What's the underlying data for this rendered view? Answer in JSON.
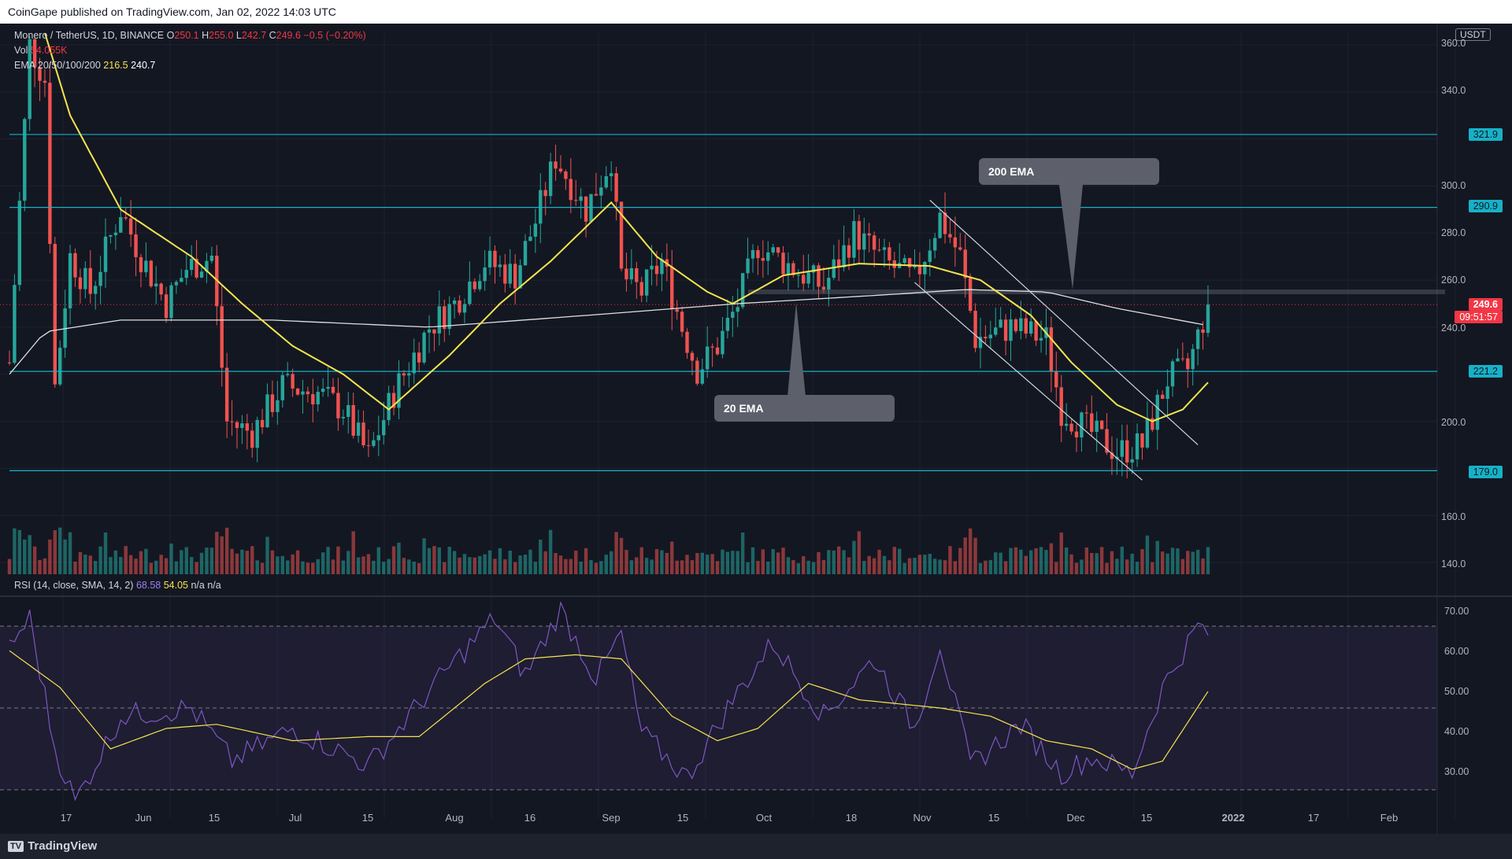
{
  "header": {
    "publisher": "CoinGape published on TradingView.com, Jan 02, 2022 14:03 UTC"
  },
  "legend": {
    "pair": "Monero / TetherUS, 1D, BINANCE",
    "o_label": "O",
    "o_val": "250.1",
    "h_label": "H",
    "h_val": "255.0",
    "l_label": "L",
    "l_val": "242.7",
    "c_label": "C",
    "c_val": "249.6",
    "chg": "−0.5 (−0.20%)",
    "vol_label": "Vol",
    "vol_val": "54.055K",
    "ema_label": "EMA 20/50/100/200",
    "ema20": "216.5",
    "ema200": "240.7",
    "rsi_label": "RSI (14, close, SMA, 14, 2)",
    "rsi_val": "68.58",
    "rsi_sma": "54.05",
    "rsi_na": "n/a n/a"
  },
  "currency_badge": "USDT",
  "callouts": {
    "ema200": "200 EMA",
    "ema20": "20 EMA"
  },
  "price_labels": {
    "r1": "321.9",
    "r2": "290.9",
    "cur": "249.6",
    "countdown": "09:51:57",
    "s1": "221.2",
    "s2": "179.0"
  },
  "price_axis": [
    "360.0",
    "340.0",
    "300.0",
    "280.0",
    "260.0",
    "240.0",
    "200.0",
    "160.0",
    "140.0"
  ],
  "rsi_axis": [
    "70.00",
    "60.00",
    "50.00",
    "40.00",
    "30.00"
  ],
  "time_axis": [
    "17",
    "Jun",
    "15",
    "Jul",
    "15",
    "Aug",
    "16",
    "Sep",
    "15",
    "Oct",
    "18",
    "Nov",
    "15",
    "Dec",
    "15",
    "2022",
    "17",
    "Feb"
  ],
  "footer": {
    "brand": "TradingView"
  },
  "colors": {
    "bull": "#26a69a",
    "bear": "#ef5350",
    "ema20": "#f5e44d",
    "ema200": "#e0e0e0",
    "level": "#16b1c7",
    "rsi": "#7e57c2",
    "rsi_ma": "#f5e44d"
  },
  "chart_data": {
    "type": "candlestick",
    "pair": "Monero / TetherUS",
    "timeframe": "1D",
    "exchange": "BINANCE",
    "x_range": [
      "2021-05-10",
      "2022-02-28"
    ],
    "y_range": [
      135,
      365
    ],
    "levels": [
      321.9,
      290.9,
      221.2,
      179.0
    ],
    "current_price": 249.6,
    "ohlc_anchors": [
      {
        "date": "2021-05-10",
        "close": 225
      },
      {
        "date": "2021-05-14",
        "close": 360
      },
      {
        "date": "2021-05-17",
        "close": 345
      },
      {
        "date": "2021-05-19",
        "close": 215
      },
      {
        "date": "2021-05-22",
        "close": 270
      },
      {
        "date": "2021-05-26",
        "close": 255
      },
      {
        "date": "2021-06-01",
        "close": 290
      },
      {
        "date": "2021-06-05",
        "close": 270
      },
      {
        "date": "2021-06-10",
        "close": 250
      },
      {
        "date": "2021-06-14",
        "close": 265
      },
      {
        "date": "2021-06-19",
        "close": 270
      },
      {
        "date": "2021-06-22",
        "close": 200
      },
      {
        "date": "2021-06-27",
        "close": 195
      },
      {
        "date": "2021-07-03",
        "close": 215
      },
      {
        "date": "2021-07-10",
        "close": 212
      },
      {
        "date": "2021-07-15",
        "close": 205
      },
      {
        "date": "2021-07-20",
        "close": 185
      },
      {
        "date": "2021-07-25",
        "close": 212
      },
      {
        "date": "2021-08-01",
        "close": 240
      },
      {
        "date": "2021-08-06",
        "close": 250
      },
      {
        "date": "2021-08-12",
        "close": 268
      },
      {
        "date": "2021-08-18",
        "close": 262
      },
      {
        "date": "2021-08-22",
        "close": 285
      },
      {
        "date": "2021-08-26",
        "close": 312
      },
      {
        "date": "2021-09-01",
        "close": 290
      },
      {
        "date": "2021-09-06",
        "close": 312
      },
      {
        "date": "2021-09-08",
        "close": 262
      },
      {
        "date": "2021-09-12",
        "close": 255
      },
      {
        "date": "2021-09-16",
        "close": 268
      },
      {
        "date": "2021-09-20",
        "close": 240
      },
      {
        "date": "2021-09-23",
        "close": 222
      },
      {
        "date": "2021-09-27",
        "close": 232
      },
      {
        "date": "2021-10-01",
        "close": 250
      },
      {
        "date": "2021-10-05",
        "close": 275
      },
      {
        "date": "2021-10-12",
        "close": 265
      },
      {
        "date": "2021-10-18",
        "close": 257
      },
      {
        "date": "2021-10-24",
        "close": 280
      },
      {
        "date": "2021-10-30",
        "close": 268
      },
      {
        "date": "2021-11-05",
        "close": 260
      },
      {
        "date": "2021-11-10",
        "close": 287
      },
      {
        "date": "2021-11-14",
        "close": 270
      },
      {
        "date": "2021-11-17",
        "close": 235
      },
      {
        "date": "2021-11-24",
        "close": 240
      },
      {
        "date": "2021-12-01",
        "close": 235
      },
      {
        "date": "2021-12-04",
        "close": 205
      },
      {
        "date": "2021-12-10",
        "close": 195
      },
      {
        "date": "2021-12-15",
        "close": 187
      },
      {
        "date": "2021-12-20",
        "close": 190
      },
      {
        "date": "2021-12-25",
        "close": 218
      },
      {
        "date": "2021-12-29",
        "close": 222
      },
      {
        "date": "2022-01-02",
        "close": 249.6
      }
    ],
    "ema20_anchors": [
      {
        "date": "2021-05-17",
        "value": 365
      },
      {
        "date": "2021-05-22",
        "value": 330
      },
      {
        "date": "2021-06-01",
        "value": 290
      },
      {
        "date": "2021-06-15",
        "value": 270
      },
      {
        "date": "2021-06-25",
        "value": 250
      },
      {
        "date": "2021-07-05",
        "value": 232
      },
      {
        "date": "2021-07-15",
        "value": 220
      },
      {
        "date": "2021-07-24",
        "value": 205
      },
      {
        "date": "2021-08-05",
        "value": 228
      },
      {
        "date": "2021-08-15",
        "value": 250
      },
      {
        "date": "2021-08-25",
        "value": 268
      },
      {
        "date": "2021-09-06",
        "value": 293
      },
      {
        "date": "2021-09-15",
        "value": 270
      },
      {
        "date": "2021-09-25",
        "value": 255
      },
      {
        "date": "2021-09-30",
        "value": 250
      },
      {
        "date": "2021-10-10",
        "value": 262
      },
      {
        "date": "2021-10-25",
        "value": 267
      },
      {
        "date": "2021-11-08",
        "value": 266
      },
      {
        "date": "2021-11-18",
        "value": 260
      },
      {
        "date": "2021-11-28",
        "value": 245
      },
      {
        "date": "2021-12-06",
        "value": 225
      },
      {
        "date": "2021-12-15",
        "value": 207
      },
      {
        "date": "2021-12-22",
        "value": 200
      },
      {
        "date": "2021-12-28",
        "value": 205
      },
      {
        "date": "2022-01-02",
        "value": 216.5
      }
    ],
    "ema200_anchors": [
      {
        "date": "2021-05-10",
        "value": 220
      },
      {
        "date": "2021-05-17",
        "value": 238
      },
      {
        "date": "2021-06-01",
        "value": 243
      },
      {
        "date": "2021-07-01",
        "value": 243
      },
      {
        "date": "2021-08-01",
        "value": 240
      },
      {
        "date": "2021-09-01",
        "value": 245
      },
      {
        "date": "2021-10-01",
        "value": 250
      },
      {
        "date": "2021-11-01",
        "value": 254
      },
      {
        "date": "2021-11-15",
        "value": 256
      },
      {
        "date": "2021-12-01",
        "value": 255
      },
      {
        "date": "2021-12-15",
        "value": 248
      },
      {
        "date": "2022-01-02",
        "value": 240.7
      }
    ],
    "channel_lines": [
      {
        "from": {
          "date": "2021-11-08",
          "price": 294
        },
        "to": {
          "date": "2021-12-31",
          "price": 190
        }
      },
      {
        "from": {
          "date": "2021-11-05",
          "price": 259
        },
        "to": {
          "date": "2021-12-20",
          "price": 175
        }
      }
    ],
    "rsi": {
      "range": [
        25,
        75
      ],
      "levels": [
        70,
        50,
        30
      ],
      "anchors": [
        {
          "date": "2021-05-10",
          "value": 65
        },
        {
          "date": "2021-05-14",
          "value": 72
        },
        {
          "date": "2021-05-19",
          "value": 40
        },
        {
          "date": "2021-05-23",
          "value": 27
        },
        {
          "date": "2021-06-01",
          "value": 48
        },
        {
          "date": "2021-06-15",
          "value": 50
        },
        {
          "date": "2021-06-23",
          "value": 37
        },
        {
          "date": "2021-07-05",
          "value": 45
        },
        {
          "date": "2021-07-20",
          "value": 36
        },
        {
          "date": "2021-08-05",
          "value": 60
        },
        {
          "date": "2021-08-14",
          "value": 72
        },
        {
          "date": "2021-08-20",
          "value": 58
        },
        {
          "date": "2021-08-27",
          "value": 74
        },
        {
          "date": "2021-09-03",
          "value": 57
        },
        {
          "date": "2021-09-08",
          "value": 68
        },
        {
          "date": "2021-09-12",
          "value": 44
        },
        {
          "date": "2021-09-21",
          "value": 33
        },
        {
          "date": "2021-09-30",
          "value": 52
        },
        {
          "date": "2021-10-08",
          "value": 66
        },
        {
          "date": "2021-10-18",
          "value": 48
        },
        {
          "date": "2021-10-28",
          "value": 62
        },
        {
          "date": "2021-11-05",
          "value": 45
        },
        {
          "date": "2021-11-10",
          "value": 66
        },
        {
          "date": "2021-11-16",
          "value": 36
        },
        {
          "date": "2021-11-26",
          "value": 46
        },
        {
          "date": "2021-12-04",
          "value": 34
        },
        {
          "date": "2021-12-10",
          "value": 38
        },
        {
          "date": "2021-12-18",
          "value": 34
        },
        {
          "date": "2021-12-24",
          "value": 55
        },
        {
          "date": "2021-12-31",
          "value": 70
        },
        {
          "date": "2022-01-02",
          "value": 68.58
        }
      ],
      "ma_anchors": [
        {
          "date": "2021-05-10",
          "value": 64
        },
        {
          "date": "2021-05-20",
          "value": 55
        },
        {
          "date": "2021-05-30",
          "value": 40
        },
        {
          "date": "2021-06-10",
          "value": 45
        },
        {
          "date": "2021-06-20",
          "value": 46
        },
        {
          "date": "2021-07-05",
          "value": 42
        },
        {
          "date": "2021-07-20",
          "value": 43
        },
        {
          "date": "2021-07-30",
          "value": 43
        },
        {
          "date": "2021-08-12",
          "value": 56
        },
        {
          "date": "2021-08-20",
          "value": 62
        },
        {
          "date": "2021-08-30",
          "value": 63
        },
        {
          "date": "2021-09-08",
          "value": 62
        },
        {
          "date": "2021-09-18",
          "value": 48
        },
        {
          "date": "2021-09-27",
          "value": 42
        },
        {
          "date": "2021-10-05",
          "value": 45
        },
        {
          "date": "2021-10-15",
          "value": 56
        },
        {
          "date": "2021-10-25",
          "value": 52
        },
        {
          "date": "2021-11-10",
          "value": 50
        },
        {
          "date": "2021-11-20",
          "value": 48
        },
        {
          "date": "2021-12-01",
          "value": 42
        },
        {
          "date": "2021-12-10",
          "value": 40
        },
        {
          "date": "2021-12-18",
          "value": 35
        },
        {
          "date": "2021-12-24",
          "value": 37
        },
        {
          "date": "2022-01-02",
          "value": 54.05
        }
      ]
    }
  }
}
